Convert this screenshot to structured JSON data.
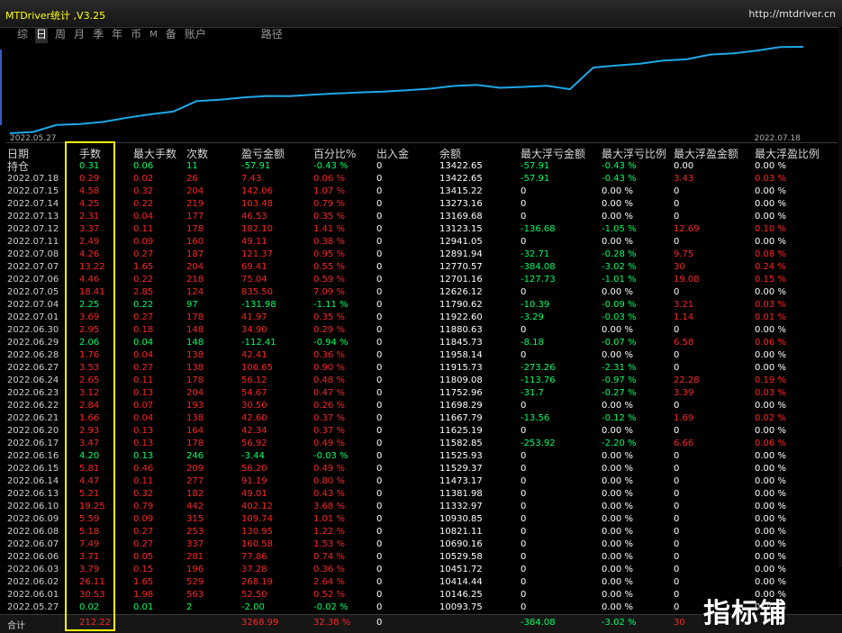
{
  "app": {
    "title": "MTDriver统计 ,V3.25",
    "url": "http://mtdriver.cn"
  },
  "tabs": [
    "综",
    "日",
    "周",
    "月",
    "季",
    "年",
    "币",
    "M",
    "备",
    "账户",
    "路径"
  ],
  "active_tab": 1,
  "chart": {
    "start_date": "2022.05.27",
    "end_date": "2022.07.18",
    "series_color": "#1ea8e8",
    "values": [
      10093.75,
      10146.25,
      10414.44,
      10451.72,
      10529.58,
      10690.16,
      10821.11,
      10930.85,
      11332.97,
      11381.98,
      11473.17,
      11529.37,
      11525.93,
      11582.85,
      11625.19,
      11667.79,
      11698.29,
      11752.96,
      11809.08,
      11915.73,
      11958.14,
      11845.73,
      11880.63,
      11922.6,
      11790.62,
      12626.12,
      12701.16,
      12770.57,
      12891.94,
      12941.05,
      13123.15,
      13169.68,
      13273.16,
      13415.22,
      13422.65
    ]
  },
  "headers": [
    "日期",
    "手数",
    "最大手数",
    "次数",
    "盈亏金额",
    "百分比%",
    "出入金",
    "余额",
    "最大浮亏金额",
    "最大浮亏比例",
    "最大浮盈金额",
    "最大浮盈比例"
  ],
  "holding": {
    "date": "持仓",
    "lots": "0.31",
    "max_lots": "0.06",
    "count": "11",
    "pnl": "-57.91",
    "pct": "-0.43 %",
    "io": "0",
    "balance": "13422.65",
    "mdd_amt": "-57.91",
    "mdd_pct": "-0.43 %",
    "mfp_amt": "0.00",
    "mfp_pct": "0.00 %"
  },
  "rows": [
    {
      "date": "2022.07.18",
      "lots": "0.29",
      "max_lots": "0.02",
      "count": "26",
      "pnl": "7.43",
      "pct": "0.06 %",
      "io": "0",
      "balance": "13422.65",
      "mdd_amt": "-57.91",
      "mdd_pct": "-0.43 %",
      "mfp_amt": "3.43",
      "mfp_pct": "0.03 %"
    },
    {
      "date": "2022.07.15",
      "lots": "4.58",
      "max_lots": "0.32",
      "count": "204",
      "pnl": "142.06",
      "pct": "1.07 %",
      "io": "0",
      "balance": "13415.22",
      "mdd_amt": "0",
      "mdd_pct": "0.00 %",
      "mfp_amt": "0",
      "mfp_pct": "0.00 %"
    },
    {
      "date": "2022.07.14",
      "lots": "4.25",
      "max_lots": "0.22",
      "count": "219",
      "pnl": "103.48",
      "pct": "0.79 %",
      "io": "0",
      "balance": "13273.16",
      "mdd_amt": "0",
      "mdd_pct": "0.00 %",
      "mfp_amt": "0",
      "mfp_pct": "0.00 %"
    },
    {
      "date": "2022.07.13",
      "lots": "2.31",
      "max_lots": "0.04",
      "count": "177",
      "pnl": "46.53",
      "pct": "0.35 %",
      "io": "0",
      "balance": "13169.68",
      "mdd_amt": "0",
      "mdd_pct": "0.00 %",
      "mfp_amt": "0",
      "mfp_pct": "0.00 %"
    },
    {
      "date": "2022.07.12",
      "lots": "3.37",
      "max_lots": "0.11",
      "count": "178",
      "pnl": "182.10",
      "pct": "1.41 %",
      "io": "0",
      "balance": "13123.15",
      "mdd_amt": "-136.68",
      "mdd_pct": "-1.05 %",
      "mfp_amt": "12.69",
      "mfp_pct": "0.10 %"
    },
    {
      "date": "2022.07.11",
      "lots": "2.49",
      "max_lots": "0.09",
      "count": "160",
      "pnl": "49.11",
      "pct": "0.38 %",
      "io": "0",
      "balance": "12941.05",
      "mdd_amt": "0",
      "mdd_pct": "0.00 %",
      "mfp_amt": "0",
      "mfp_pct": "0.00 %"
    },
    {
      "date": "2022.07.08",
      "lots": "4.26",
      "max_lots": "0.27",
      "count": "187",
      "pnl": "121.37",
      "pct": "0.95 %",
      "io": "0",
      "balance": "12891.94",
      "mdd_amt": "-32.71",
      "mdd_pct": "-0.28 %",
      "mfp_amt": "9.75",
      "mfp_pct": "0.08 %"
    },
    {
      "date": "2022.07.07",
      "lots": "13.22",
      "max_lots": "1.65",
      "count": "204",
      "pnl": "69.41",
      "pct": "0.55 %",
      "io": "0",
      "balance": "12770.57",
      "mdd_amt": "-384.08",
      "mdd_pct": "-3.02 %",
      "mfp_amt": "30",
      "mfp_pct": "0.24 %"
    },
    {
      "date": "2022.07.06",
      "lots": "4.46",
      "max_lots": "0.22",
      "count": "218",
      "pnl": "75.04",
      "pct": "0.59 %",
      "io": "0",
      "balance": "12701.16",
      "mdd_amt": "-127.73",
      "mdd_pct": "-1.01 %",
      "mfp_amt": "19.08",
      "mfp_pct": "0.15 %"
    },
    {
      "date": "2022.07.05",
      "lots": "18.41",
      "max_lots": "2.85",
      "count": "124",
      "pnl": "835.50",
      "pct": "7.09 %",
      "io": "0",
      "balance": "12626.12",
      "mdd_amt": "0",
      "mdd_pct": "0.00 %",
      "mfp_amt": "0",
      "mfp_pct": "0.00 %"
    },
    {
      "date": "2022.07.04",
      "lots": "2.25",
      "max_lots": "0.22",
      "count": "97",
      "pnl": "-131.98",
      "pct": "-1.11 %",
      "io": "0",
      "balance": "11790.62",
      "mdd_amt": "-10.39",
      "mdd_pct": "-0.09 %",
      "mfp_amt": "3.21",
      "mfp_pct": "0.03 %"
    },
    {
      "date": "2022.07.01",
      "lots": "3.69",
      "max_lots": "0.27",
      "count": "178",
      "pnl": "41.97",
      "pct": "0.35 %",
      "io": "0",
      "balance": "11922.60",
      "mdd_amt": "-3.29",
      "mdd_pct": "-0.03 %",
      "mfp_amt": "1.14",
      "mfp_pct": "0.01 %"
    },
    {
      "date": "2022.06.30",
      "lots": "2.95",
      "max_lots": "0.18",
      "count": "148",
      "pnl": "34.90",
      "pct": "0.29 %",
      "io": "0",
      "balance": "11880.63",
      "mdd_amt": "0",
      "mdd_pct": "0.00 %",
      "mfp_amt": "0",
      "mfp_pct": "0.00 %"
    },
    {
      "date": "2022.06.29",
      "lots": "2.06",
      "max_lots": "0.04",
      "count": "148",
      "pnl": "-112.41",
      "pct": "-0.94 %",
      "io": "0",
      "balance": "11845.73",
      "mdd_amt": "-8.18",
      "mdd_pct": "-0.07 %",
      "mfp_amt": "6.58",
      "mfp_pct": "0.06 %"
    },
    {
      "date": "2022.06.28",
      "lots": "1.76",
      "max_lots": "0.04",
      "count": "138",
      "pnl": "42.41",
      "pct": "0.36 %",
      "io": "0",
      "balance": "11958.14",
      "mdd_amt": "0",
      "mdd_pct": "0.00 %",
      "mfp_amt": "0",
      "mfp_pct": "0.00 %"
    },
    {
      "date": "2022.06.27",
      "lots": "3.53",
      "max_lots": "0.27",
      "count": "138",
      "pnl": "106.65",
      "pct": "0.90 %",
      "io": "0",
      "balance": "11915.73",
      "mdd_amt": "-273.26",
      "mdd_pct": "-2.31 %",
      "mfp_amt": "0",
      "mfp_pct": "0.00 %"
    },
    {
      "date": "2022.06.24",
      "lots": "2.65",
      "max_lots": "0.11",
      "count": "178",
      "pnl": "56.12",
      "pct": "0.48 %",
      "io": "0",
      "balance": "11809.08",
      "mdd_amt": "-113.76",
      "mdd_pct": "-0.97 %",
      "mfp_amt": "22.28",
      "mfp_pct": "0.19 %"
    },
    {
      "date": "2022.06.23",
      "lots": "3.12",
      "max_lots": "0.13",
      "count": "204",
      "pnl": "54.67",
      "pct": "0.47 %",
      "io": "0",
      "balance": "11752.96",
      "mdd_amt": "-31.7",
      "mdd_pct": "-0.27 %",
      "mfp_amt": "3.39",
      "mfp_pct": "0.03 %"
    },
    {
      "date": "2022.06.22",
      "lots": "2.84",
      "max_lots": "0.07",
      "count": "193",
      "pnl": "30.50",
      "pct": "0.26 %",
      "io": "0",
      "balance": "11698.29",
      "mdd_amt": "0",
      "mdd_pct": "0.00 %",
      "mfp_amt": "0",
      "mfp_pct": "0.00 %"
    },
    {
      "date": "2022.06.21",
      "lots": "1.66",
      "max_lots": "0.04",
      "count": "138",
      "pnl": "42.60",
      "pct": "0.37 %",
      "io": "0",
      "balance": "11667.79",
      "mdd_amt": "-13.56",
      "mdd_pct": "-0.12 %",
      "mfp_amt": "1.69",
      "mfp_pct": "0.02 %"
    },
    {
      "date": "2022.06.20",
      "lots": "2.93",
      "max_lots": "0.13",
      "count": "164",
      "pnl": "42.34",
      "pct": "0.37 %",
      "io": "0",
      "balance": "11625.19",
      "mdd_amt": "0",
      "mdd_pct": "0.00 %",
      "mfp_amt": "0",
      "mfp_pct": "0.00 %"
    },
    {
      "date": "2022.06.17",
      "lots": "3.47",
      "max_lots": "0.13",
      "count": "178",
      "pnl": "56.92",
      "pct": "0.49 %",
      "io": "0",
      "balance": "11582.85",
      "mdd_amt": "-253.92",
      "mdd_pct": "-2.20 %",
      "mfp_amt": "6.66",
      "mfp_pct": "0.06 %"
    },
    {
      "date": "2022.06.16",
      "lots": "4.20",
      "max_lots": "0.13",
      "count": "246",
      "pnl": "-3.44",
      "pct": "-0.03 %",
      "io": "0",
      "balance": "11525.93",
      "mdd_amt": "0",
      "mdd_pct": "0.00 %",
      "mfp_amt": "0",
      "mfp_pct": "0.00 %"
    },
    {
      "date": "2022.06.15",
      "lots": "5.81",
      "max_lots": "0.46",
      "count": "209",
      "pnl": "56.20",
      "pct": "0.49 %",
      "io": "0",
      "balance": "11529.37",
      "mdd_amt": "0",
      "mdd_pct": "0.00 %",
      "mfp_amt": "0",
      "mfp_pct": "0.00 %"
    },
    {
      "date": "2022.06.14",
      "lots": "4.47",
      "max_lots": "0.11",
      "count": "277",
      "pnl": "91.19",
      "pct": "0.80 %",
      "io": "0",
      "balance": "11473.17",
      "mdd_amt": "0",
      "mdd_pct": "0.00 %",
      "mfp_amt": "0",
      "mfp_pct": "0.00 %"
    },
    {
      "date": "2022.06.13",
      "lots": "5.21",
      "max_lots": "0.32",
      "count": "182",
      "pnl": "49.01",
      "pct": "0.43 %",
      "io": "0",
      "balance": "11381.98",
      "mdd_amt": "0",
      "mdd_pct": "0.00 %",
      "mfp_amt": "0",
      "mfp_pct": "0.00 %"
    },
    {
      "date": "2022.06.10",
      "lots": "19.25",
      "max_lots": "0.79",
      "count": "442",
      "pnl": "402.12",
      "pct": "3.68 %",
      "io": "0",
      "balance": "11332.97",
      "mdd_amt": "0",
      "mdd_pct": "0.00 %",
      "mfp_amt": "0",
      "mfp_pct": "0.00 %"
    },
    {
      "date": "2022.06.09",
      "lots": "5.59",
      "max_lots": "0.09",
      "count": "315",
      "pnl": "109.74",
      "pct": "1.01 %",
      "io": "0",
      "balance": "10930.85",
      "mdd_amt": "0",
      "mdd_pct": "0.00 %",
      "mfp_amt": "0",
      "mfp_pct": "0.00 %"
    },
    {
      "date": "2022.06.08",
      "lots": "5.18",
      "max_lots": "0.27",
      "count": "253",
      "pnl": "130.95",
      "pct": "1.22 %",
      "io": "0",
      "balance": "10821.11",
      "mdd_amt": "0",
      "mdd_pct": "0.00 %",
      "mfp_amt": "0",
      "mfp_pct": "0.00 %"
    },
    {
      "date": "2022.06.07",
      "lots": "7.49",
      "max_lots": "0.27",
      "count": "337",
      "pnl": "160.58",
      "pct": "1.53 %",
      "io": "0",
      "balance": "10690.16",
      "mdd_amt": "0",
      "mdd_pct": "0.00 %",
      "mfp_amt": "0",
      "mfp_pct": "0.00 %"
    },
    {
      "date": "2022.06.06",
      "lots": "3.71",
      "max_lots": "0.05",
      "count": "281",
      "pnl": "77.86",
      "pct": "0.74 %",
      "io": "0",
      "balance": "10529.58",
      "mdd_amt": "0",
      "mdd_pct": "0.00 %",
      "mfp_amt": "0",
      "mfp_pct": "0.00 %"
    },
    {
      "date": "2022.06.03",
      "lots": "3.79",
      "max_lots": "0.15",
      "count": "196",
      "pnl": "37.28",
      "pct": "0.36 %",
      "io": "0",
      "balance": "10451.72",
      "mdd_amt": "0",
      "mdd_pct": "0.00 %",
      "mfp_amt": "0",
      "mfp_pct": "0.00 %"
    },
    {
      "date": "2022.06.02",
      "lots": "26.11",
      "max_lots": "1.65",
      "count": "529",
      "pnl": "268.19",
      "pct": "2.64 %",
      "io": "0",
      "balance": "10414.44",
      "mdd_amt": "0",
      "mdd_pct": "0.00 %",
      "mfp_amt": "0",
      "mfp_pct": "0.00 %"
    },
    {
      "date": "2022.06.01",
      "lots": "30.53",
      "max_lots": "1.98",
      "count": "563",
      "pnl": "52.50",
      "pct": "0.52 %",
      "io": "0",
      "balance": "10146.25",
      "mdd_amt": "0",
      "mdd_pct": "0.00 %",
      "mfp_amt": "0",
      "mfp_pct": "0.00 %"
    },
    {
      "date": "2022.05.27",
      "lots": "0.02",
      "max_lots": "0.01",
      "count": "2",
      "pnl": "-2.00",
      "pct": "-0.02 %",
      "io": "0",
      "balance": "10093.75",
      "mdd_amt": "0",
      "mdd_pct": "0.00 %",
      "mfp_amt": "0",
      "mfp_pct": "0.00 %"
    }
  ],
  "total": {
    "label": "合计",
    "lots": "212.22",
    "pnl": "3268.99",
    "pct": "32.38 %",
    "io": "0",
    "mdd_amt": "-384.08",
    "mdd_pct": "-3.02 %",
    "mfp_amt": "30"
  },
  "watermark": "指标铺"
}
